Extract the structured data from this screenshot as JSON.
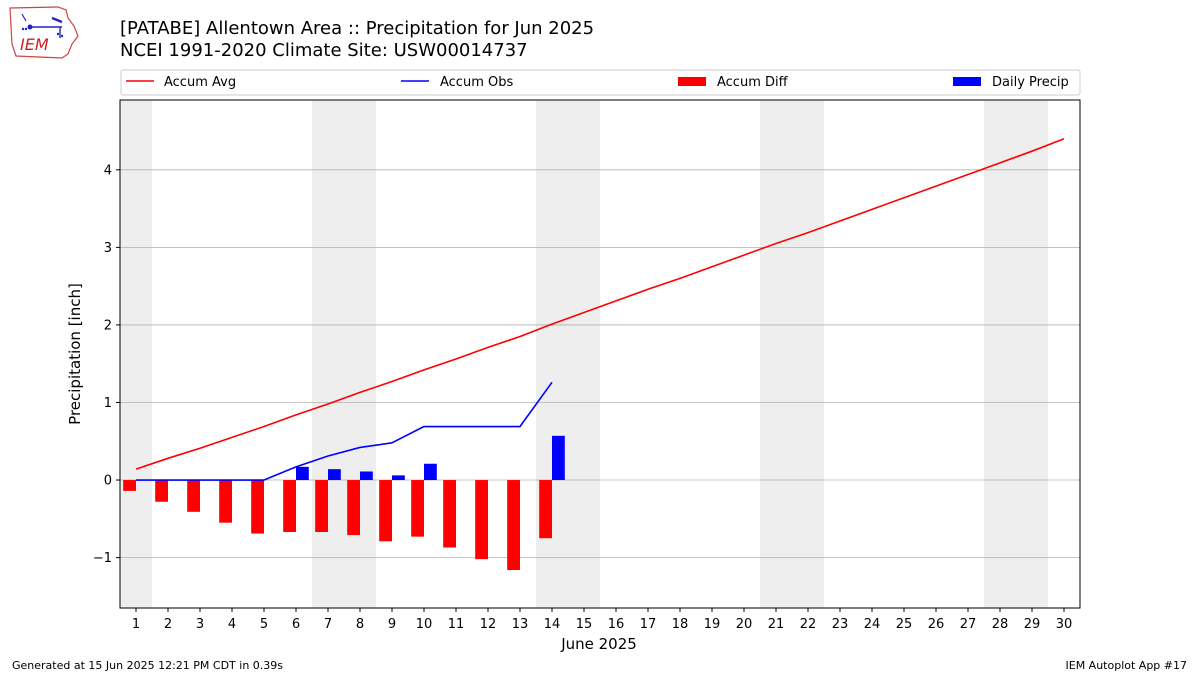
{
  "header": {
    "title_line1": "[PATABE] Allentown Area :: Precipitation for Jun 2025",
    "title_line2": "NCEI 1991-2020 Climate Site: USW00014737",
    "logo_text": "IEM"
  },
  "footer": {
    "generated": "Generated at 15 Jun 2025 12:21 PM CDT in 0.39s",
    "app": "IEM Autoplot App #17"
  },
  "colors": {
    "accum_avg": "#ff0000",
    "accum_obs": "#0000ff",
    "accum_diff": "#ff0000",
    "daily_precip": "#0000ff",
    "weekend_shade": "#eeeeee",
    "grid": "#b0b0b0"
  },
  "chart_data": {
    "type": "line",
    "xlabel": "June 2025",
    "ylabel": "Precipitation [inch]",
    "xlim": [
      0.5,
      30.5
    ],
    "ylim": [
      -1.65,
      4.9
    ],
    "x": [
      1,
      2,
      3,
      4,
      5,
      6,
      7,
      8,
      9,
      10,
      11,
      12,
      13,
      14,
      15,
      16,
      17,
      18,
      19,
      20,
      21,
      22,
      23,
      24,
      25,
      26,
      27,
      28,
      29,
      30
    ],
    "yticks": [
      -1,
      0,
      1,
      2,
      3,
      4
    ],
    "ytick_labels": [
      "−1",
      "0",
      "1",
      "2",
      "3",
      "4"
    ],
    "grid": "horizontal",
    "legend_position": "top",
    "weekend_shading": [
      [
        0.5,
        1.5
      ],
      [
        6.5,
        8.5
      ],
      [
        13.5,
        15.5
      ],
      [
        20.5,
        22.5
      ],
      [
        27.5,
        29.5
      ]
    ],
    "series": [
      {
        "name": "Accum Avg",
        "kind": "line",
        "x": [
          1,
          2,
          3,
          4,
          5,
          6,
          7,
          8,
          9,
          10,
          11,
          12,
          13,
          14,
          15,
          16,
          17,
          18,
          19,
          20,
          21,
          22,
          23,
          24,
          25,
          26,
          27,
          28,
          29,
          30
        ],
        "values": [
          0.14,
          0.28,
          0.41,
          0.55,
          0.69,
          0.84,
          0.98,
          1.13,
          1.27,
          1.42,
          1.56,
          1.71,
          1.85,
          2.01,
          2.16,
          2.31,
          2.46,
          2.6,
          2.75,
          2.9,
          3.05,
          3.19,
          3.34,
          3.49,
          3.64,
          3.79,
          3.94,
          4.09,
          4.24,
          4.4
        ]
      },
      {
        "name": "Accum Obs",
        "kind": "line",
        "x": [
          1,
          2,
          3,
          4,
          5,
          6,
          7,
          8,
          9,
          10,
          11,
          12,
          13,
          14
        ],
        "values": [
          0.0,
          0.0,
          0.0,
          0.0,
          0.0,
          0.17,
          0.31,
          0.42,
          0.48,
          0.69,
          0.69,
          0.69,
          0.69,
          1.26
        ]
      },
      {
        "name": "Accum Diff",
        "kind": "bar",
        "offset": -0.2,
        "x": [
          1,
          2,
          3,
          4,
          5,
          6,
          7,
          8,
          9,
          10,
          11,
          12,
          13,
          14
        ],
        "values": [
          -0.14,
          -0.28,
          -0.41,
          -0.55,
          -0.69,
          -0.67,
          -0.67,
          -0.71,
          -0.79,
          -0.73,
          -0.87,
          -1.02,
          -1.16,
          -0.75
        ]
      },
      {
        "name": "Daily Precip",
        "kind": "bar",
        "offset": 0.2,
        "x": [
          1,
          2,
          3,
          4,
          5,
          6,
          7,
          8,
          9,
          10,
          11,
          12,
          13,
          14
        ],
        "values": [
          0,
          0,
          0,
          0,
          0,
          0.17,
          0.14,
          0.11,
          0.06,
          0.21,
          0,
          0,
          0,
          0.57
        ]
      }
    ]
  }
}
